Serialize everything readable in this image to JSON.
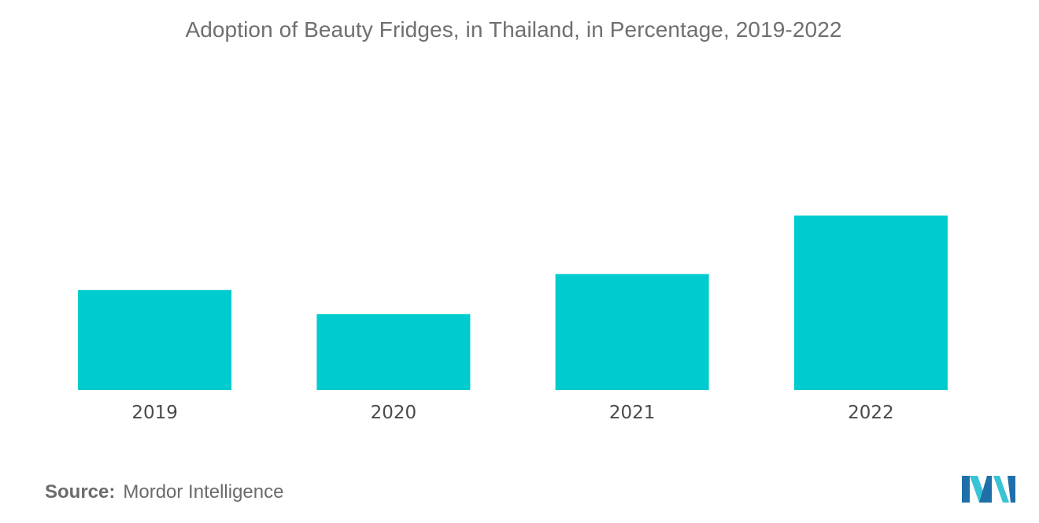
{
  "chart_data": {
    "type": "bar",
    "title": "Adoption of Beauty Fridges, in Thailand, in Percentage, 2019-2022",
    "xlabel": "",
    "ylabel": "",
    "categories": [
      "2019",
      "2020",
      "2021",
      "2022"
    ],
    "values": [
      12.5,
      9.5,
      14.5,
      21.8
    ],
    "ylim": [
      0,
      45
    ],
    "grid": false,
    "legend": "none",
    "bar_color": "#00cccf"
  },
  "source": {
    "label": "Source:",
    "text": "Mordor Intelligence"
  },
  "logo": {
    "icon": "mordor-intelligence-logo-icon",
    "colors": [
      "#1f6fa8",
      "#39c3d6"
    ]
  }
}
